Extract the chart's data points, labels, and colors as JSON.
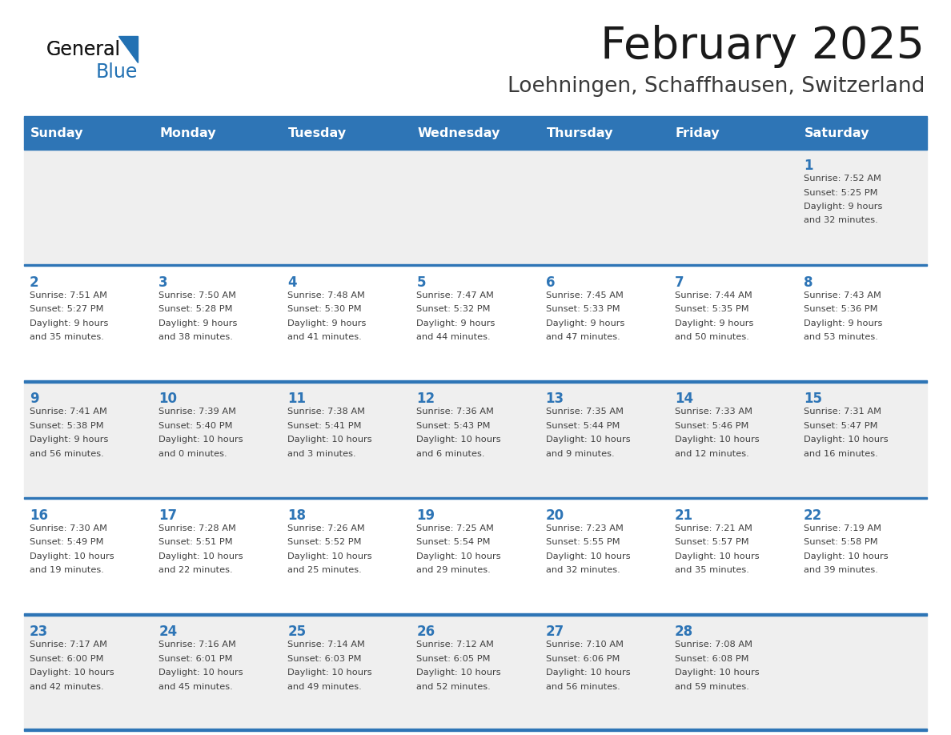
{
  "title": "February 2025",
  "subtitle": "Loehningen, Schaffhausen, Switzerland",
  "days_of_week": [
    "Sunday",
    "Monday",
    "Tuesday",
    "Wednesday",
    "Thursday",
    "Friday",
    "Saturday"
  ],
  "header_bg": "#2E75B6",
  "header_text": "#FFFFFF",
  "cell_bg_odd": "#EFEFEF",
  "cell_bg_even": "#FFFFFF",
  "cell_border_color": "#2E75B6",
  "day_number_color": "#2E75B6",
  "text_color": "#404040",
  "title_color": "#1a1a1a",
  "subtitle_color": "#3a3a3a",
  "logo_general_color": "#1a1a1a",
  "logo_blue_color": "#2271B3",
  "logo_triangle_color": "#2271B3",
  "weeks": [
    [
      {
        "day": null,
        "info": null
      },
      {
        "day": null,
        "info": null
      },
      {
        "day": null,
        "info": null
      },
      {
        "day": null,
        "info": null
      },
      {
        "day": null,
        "info": null
      },
      {
        "day": null,
        "info": null
      },
      {
        "day": 1,
        "info": "Sunrise: 7:52 AM\nSunset: 5:25 PM\nDaylight: 9 hours\nand 32 minutes."
      }
    ],
    [
      {
        "day": 2,
        "info": "Sunrise: 7:51 AM\nSunset: 5:27 PM\nDaylight: 9 hours\nand 35 minutes."
      },
      {
        "day": 3,
        "info": "Sunrise: 7:50 AM\nSunset: 5:28 PM\nDaylight: 9 hours\nand 38 minutes."
      },
      {
        "day": 4,
        "info": "Sunrise: 7:48 AM\nSunset: 5:30 PM\nDaylight: 9 hours\nand 41 minutes."
      },
      {
        "day": 5,
        "info": "Sunrise: 7:47 AM\nSunset: 5:32 PM\nDaylight: 9 hours\nand 44 minutes."
      },
      {
        "day": 6,
        "info": "Sunrise: 7:45 AM\nSunset: 5:33 PM\nDaylight: 9 hours\nand 47 minutes."
      },
      {
        "day": 7,
        "info": "Sunrise: 7:44 AM\nSunset: 5:35 PM\nDaylight: 9 hours\nand 50 minutes."
      },
      {
        "day": 8,
        "info": "Sunrise: 7:43 AM\nSunset: 5:36 PM\nDaylight: 9 hours\nand 53 minutes."
      }
    ],
    [
      {
        "day": 9,
        "info": "Sunrise: 7:41 AM\nSunset: 5:38 PM\nDaylight: 9 hours\nand 56 minutes."
      },
      {
        "day": 10,
        "info": "Sunrise: 7:39 AM\nSunset: 5:40 PM\nDaylight: 10 hours\nand 0 minutes."
      },
      {
        "day": 11,
        "info": "Sunrise: 7:38 AM\nSunset: 5:41 PM\nDaylight: 10 hours\nand 3 minutes."
      },
      {
        "day": 12,
        "info": "Sunrise: 7:36 AM\nSunset: 5:43 PM\nDaylight: 10 hours\nand 6 minutes."
      },
      {
        "day": 13,
        "info": "Sunrise: 7:35 AM\nSunset: 5:44 PM\nDaylight: 10 hours\nand 9 minutes."
      },
      {
        "day": 14,
        "info": "Sunrise: 7:33 AM\nSunset: 5:46 PM\nDaylight: 10 hours\nand 12 minutes."
      },
      {
        "day": 15,
        "info": "Sunrise: 7:31 AM\nSunset: 5:47 PM\nDaylight: 10 hours\nand 16 minutes."
      }
    ],
    [
      {
        "day": 16,
        "info": "Sunrise: 7:30 AM\nSunset: 5:49 PM\nDaylight: 10 hours\nand 19 minutes."
      },
      {
        "day": 17,
        "info": "Sunrise: 7:28 AM\nSunset: 5:51 PM\nDaylight: 10 hours\nand 22 minutes."
      },
      {
        "day": 18,
        "info": "Sunrise: 7:26 AM\nSunset: 5:52 PM\nDaylight: 10 hours\nand 25 minutes."
      },
      {
        "day": 19,
        "info": "Sunrise: 7:25 AM\nSunset: 5:54 PM\nDaylight: 10 hours\nand 29 minutes."
      },
      {
        "day": 20,
        "info": "Sunrise: 7:23 AM\nSunset: 5:55 PM\nDaylight: 10 hours\nand 32 minutes."
      },
      {
        "day": 21,
        "info": "Sunrise: 7:21 AM\nSunset: 5:57 PM\nDaylight: 10 hours\nand 35 minutes."
      },
      {
        "day": 22,
        "info": "Sunrise: 7:19 AM\nSunset: 5:58 PM\nDaylight: 10 hours\nand 39 minutes."
      }
    ],
    [
      {
        "day": 23,
        "info": "Sunrise: 7:17 AM\nSunset: 6:00 PM\nDaylight: 10 hours\nand 42 minutes."
      },
      {
        "day": 24,
        "info": "Sunrise: 7:16 AM\nSunset: 6:01 PM\nDaylight: 10 hours\nand 45 minutes."
      },
      {
        "day": 25,
        "info": "Sunrise: 7:14 AM\nSunset: 6:03 PM\nDaylight: 10 hours\nand 49 minutes."
      },
      {
        "day": 26,
        "info": "Sunrise: 7:12 AM\nSunset: 6:05 PM\nDaylight: 10 hours\nand 52 minutes."
      },
      {
        "day": 27,
        "info": "Sunrise: 7:10 AM\nSunset: 6:06 PM\nDaylight: 10 hours\nand 56 minutes."
      },
      {
        "day": 28,
        "info": "Sunrise: 7:08 AM\nSunset: 6:08 PM\nDaylight: 10 hours\nand 59 minutes."
      },
      {
        "day": null,
        "info": null
      }
    ]
  ]
}
